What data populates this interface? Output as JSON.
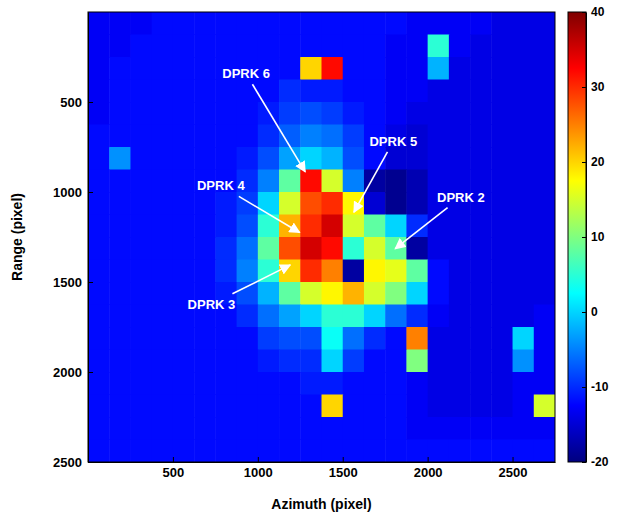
{
  "chart_data": {
    "type": "heatmap",
    "x_label": "Azimuth (pixel)",
    "y_label": "Range (pixel)",
    "xlim": [
      0,
      2750
    ],
    "ylim": [
      0,
      2500
    ],
    "xticks": [
      500,
      1000,
      1500,
      2000,
      2500
    ],
    "yticks": [
      500,
      1000,
      1500,
      2000,
      2500
    ],
    "x": [
      62.5,
      187.5,
      312.5,
      437.5,
      562.5,
      687.5,
      812.5,
      937.5,
      1062.5,
      1187.5,
      1312.5,
      1437.5,
      1562.5,
      1687.5,
      1812.5,
      1937.5,
      2062.5,
      2187.5,
      2312.5,
      2437.5,
      2562.5,
      2687.5
    ],
    "y": [
      62.5,
      187.5,
      312.5,
      437.5,
      562.5,
      687.5,
      812.5,
      937.5,
      1062.5,
      1187.5,
      1312.5,
      1437.5,
      1562.5,
      1687.5,
      1812.5,
      1937.5,
      2062.5,
      2187.5,
      2312.5,
      2437.5
    ],
    "z": [
      [
        -13,
        -13,
        -13,
        -12,
        -12,
        -12,
        -12,
        -12,
        -12,
        -12,
        -12,
        -12,
        -12,
        -12,
        -12,
        -13,
        -13,
        -13,
        -13,
        -14,
        -14,
        -14
      ],
      [
        -13,
        -13,
        -12,
        -12,
        -12,
        -12,
        -12,
        -12,
        -12,
        -12,
        -12,
        -12,
        -12,
        -12,
        -13,
        -13,
        5,
        -13,
        -14,
        -14,
        -14,
        -14
      ],
      [
        -13,
        -12,
        -12,
        -12,
        -12,
        -12,
        -12,
        -12,
        -12,
        -12,
        20,
        32,
        -12,
        -12,
        -13,
        -13,
        -2,
        -14,
        -14,
        -14,
        -14,
        -14
      ],
      [
        -13,
        -12,
        -12,
        -12,
        -12,
        -12,
        -12,
        -12,
        -12,
        -10,
        -11,
        -11,
        -12,
        -12,
        -13,
        -13,
        -14,
        -14,
        -14,
        -14,
        -14,
        -14
      ],
      [
        -13,
        -12,
        -12,
        -12,
        -12,
        -12,
        -12,
        -12,
        -11,
        -9,
        -8,
        -9,
        -11,
        -12,
        -13,
        -14,
        -14,
        -14,
        -14,
        -14,
        -14,
        -14
      ],
      [
        -12,
        -12,
        -12,
        -12,
        -12,
        -12,
        -12,
        -12,
        -10,
        -7,
        -5,
        -6,
        -9,
        -12,
        -14,
        -15,
        -14,
        -14,
        -14,
        -14,
        -14,
        -14
      ],
      [
        -12,
        -4,
        -12,
        -12,
        -12,
        -12,
        -12,
        -11,
        -8,
        -3,
        0,
        -2,
        -8,
        -12,
        -15,
        -15,
        -14,
        -14,
        -14,
        -14,
        -14,
        -14
      ],
      [
        -12,
        -12,
        -12,
        -12,
        -12,
        -12,
        -12,
        -10,
        -5,
        8,
        32,
        15,
        -5,
        -18,
        -19,
        -17,
        -14,
        -14,
        -14,
        -14,
        -14,
        -14
      ],
      [
        -12,
        -12,
        -12,
        -12,
        -12,
        -12,
        -11,
        -9,
        0,
        15,
        28,
        30,
        18,
        -15,
        -19,
        -17,
        -14,
        -14,
        -14,
        -14,
        -14,
        -14
      ],
      [
        -12,
        -12,
        -12,
        -12,
        -12,
        -12,
        -11,
        -8,
        5,
        22,
        30,
        35,
        15,
        8,
        0,
        -10,
        -14,
        -14,
        -14,
        -14,
        -14,
        -14
      ],
      [
        -12,
        -12,
        -12,
        -12,
        -12,
        -12,
        -10,
        -6,
        8,
        28,
        35,
        32,
        5,
        15,
        8,
        -18,
        -14,
        -14,
        -14,
        -14,
        -14,
        -14
      ],
      [
        -12,
        -12,
        -12,
        -12,
        -12,
        -12,
        -10,
        -5,
        5,
        20,
        30,
        25,
        -18,
        18,
        16,
        8,
        -12,
        -14,
        -14,
        -14,
        -14,
        -14
      ],
      [
        -12,
        -12,
        -12,
        -12,
        -12,
        -12,
        -11,
        -8,
        -2,
        8,
        15,
        18,
        22,
        15,
        10,
        0,
        -12,
        -14,
        -14,
        -14,
        -14,
        -14
      ],
      [
        -12,
        -12,
        -12,
        -12,
        -12,
        -12,
        -12,
        -10,
        -6,
        -3,
        0,
        5,
        5,
        0,
        -6,
        -10,
        -13,
        -14,
        -14,
        -14,
        -14,
        -13
      ],
      [
        -12,
        -12,
        -12,
        -12,
        -12,
        -12,
        -12,
        -12,
        -9,
        -8,
        -8,
        3,
        -6,
        -10,
        -12,
        25,
        -14,
        -14,
        -14,
        -14,
        0,
        -13
      ],
      [
        -12,
        -12,
        -12,
        -12,
        -12,
        -12,
        -12,
        -12,
        -11,
        -10,
        -10,
        0,
        -9,
        -12,
        -12,
        10,
        -14,
        -14,
        -14,
        -14,
        -4,
        -13
      ],
      [
        -12,
        -12,
        -12,
        -12,
        -12,
        -12,
        -12,
        -12,
        -12,
        -12,
        -11,
        -11,
        -12,
        -12,
        -12,
        -13,
        -14,
        -14,
        -14,
        -14,
        -13,
        -13
      ],
      [
        -12,
        -12,
        -12,
        -12,
        -12,
        -12,
        -12,
        -12,
        -12,
        -12,
        -12,
        20,
        -12,
        -12,
        -12,
        -13,
        -14,
        -14,
        -14,
        -14,
        -13,
        15
      ],
      [
        -12,
        -12,
        -12,
        -12,
        -12,
        -12,
        -12,
        -12,
        -12,
        -12,
        -12,
        -12,
        -12,
        -12,
        -12,
        -13,
        -13,
        -13,
        -13,
        -13,
        -13,
        -13
      ],
      [
        -12,
        -12,
        -12,
        -12,
        -12,
        -12,
        -12,
        -12,
        -12,
        -12,
        -12,
        -12,
        -12,
        -12,
        -12,
        -12,
        -12,
        -12,
        -12,
        -12,
        -12,
        -12
      ]
    ],
    "colorbar": {
      "range": [
        -20,
        40
      ],
      "ticks": [
        -20,
        -10,
        0,
        10,
        20,
        30,
        40
      ]
    },
    "annotations": [
      {
        "text": "DPRK 6",
        "x": 1279,
        "y": 888,
        "xytext": [
          931,
          343
        ]
      },
      {
        "text": "DPRK 5",
        "x": 1566,
        "y": 1112,
        "xytext": [
          1798,
          719
        ]
      },
      {
        "text": "DPRK 4",
        "x": 1246,
        "y": 1225,
        "xytext": [
          782,
          966
        ]
      },
      {
        "text": "DPRK 2",
        "x": 1809,
        "y": 1315,
        "xytext": [
          2196,
          1028
        ]
      },
      {
        "text": "DPRK 3",
        "x": 1191,
        "y": 1405,
        "xytext": [
          727,
          1624
        ]
      }
    ]
  }
}
